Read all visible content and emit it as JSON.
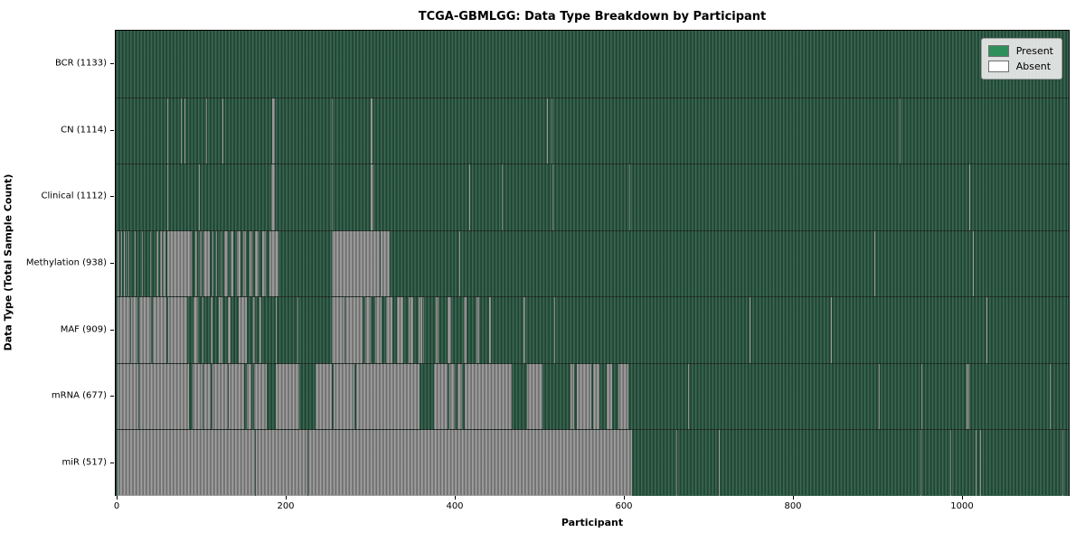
{
  "chart_data": {
    "type": "heatmap",
    "title": "TCGA-GBMLGG: Data Type Breakdown by Participant",
    "xlabel": "Participant",
    "ylabel": "Data Type (Total Sample Count)",
    "x_ticks": [
      0,
      200,
      400,
      600,
      800,
      1000
    ],
    "x_max": 1128,
    "grid": false,
    "legend_position": "upper right",
    "legend": [
      {
        "label": "Present",
        "color": "#2f8f5b"
      },
      {
        "label": "Absent",
        "color": "#ffffff"
      }
    ],
    "colors": {
      "present_fill": "#2f6049",
      "absent_fill": "#9d9d9d",
      "row_separator": "#24312a"
    },
    "rows": [
      {
        "label": "BCR (1133)",
        "data_type": "BCR",
        "total_sample_count": 1133,
        "absent": []
      },
      {
        "label": "CN (1114)",
        "data_type": "CN",
        "total_sample_count": 1114,
        "absent": [
          [
            59,
            60
          ],
          [
            75,
            76
          ],
          [
            79,
            80
          ],
          [
            105,
            106
          ],
          [
            124,
            125
          ],
          [
            183,
            186
          ],
          [
            254,
            255
          ],
          [
            299,
            302
          ],
          [
            508,
            509
          ],
          [
            513,
            514
          ],
          [
            925,
            926
          ]
        ]
      },
      {
        "label": "Clinical (1112)",
        "data_type": "Clinical",
        "total_sample_count": 1112,
        "absent": [
          [
            59,
            60
          ],
          [
            96,
            97
          ],
          [
            182,
            186
          ],
          [
            254,
            255
          ],
          [
            299,
            303
          ],
          [
            416,
            417
          ],
          [
            455,
            456
          ],
          [
            514,
            515
          ],
          [
            605,
            606
          ],
          [
            1007,
            1008
          ]
        ]
      },
      {
        "label": "Methylation (938)",
        "data_type": "Methylation",
        "total_sample_count": 938,
        "absent": [
          [
            0,
            2
          ],
          [
            4,
            5
          ],
          [
            7,
            8
          ],
          [
            10,
            11
          ],
          [
            13,
            14
          ],
          [
            20,
            21
          ],
          [
            29,
            30
          ],
          [
            38,
            39
          ],
          [
            46,
            48
          ],
          [
            50,
            52
          ],
          [
            54,
            57
          ],
          [
            59,
            88
          ],
          [
            92,
            94
          ],
          [
            97,
            99
          ],
          [
            102,
            109
          ],
          [
            112,
            113
          ],
          [
            117,
            118
          ],
          [
            122,
            123
          ],
          [
            126,
            130
          ],
          [
            134,
            137
          ],
          [
            141,
            145
          ],
          [
            149,
            152
          ],
          [
            156,
            159
          ],
          [
            163,
            167
          ],
          [
            171,
            175
          ],
          [
            180,
            190
          ],
          [
            254,
            310
          ],
          [
            311,
            322
          ],
          [
            404,
            405
          ],
          [
            895,
            896
          ],
          [
            1012,
            1013
          ]
        ]
      },
      {
        "label": "MAF (909)",
        "data_type": "MAF",
        "total_sample_count": 909,
        "absent": [
          [
            0,
            15
          ],
          [
            16,
            24
          ],
          [
            26,
            40
          ],
          [
            42,
            58
          ],
          [
            60,
            82
          ],
          [
            90,
            95
          ],
          [
            100,
            102
          ],
          [
            110,
            112
          ],
          [
            120,
            124
          ],
          [
            131,
            134
          ],
          [
            143,
            153
          ],
          [
            160,
            163
          ],
          [
            168,
            170
          ],
          [
            187,
            188
          ],
          [
            213,
            214
          ],
          [
            254,
            268
          ],
          [
            270,
            290
          ],
          [
            293,
            300
          ],
          [
            305,
            312
          ],
          [
            318,
            325
          ],
          [
            330,
            338
          ],
          [
            344,
            350
          ],
          [
            356,
            360
          ],
          [
            362,
            363
          ],
          [
            376,
            380
          ],
          [
            390,
            395
          ],
          [
            410,
            413
          ],
          [
            425,
            428
          ],
          [
            440,
            442
          ],
          [
            480,
            482
          ],
          [
            517,
            518
          ],
          [
            748,
            749
          ],
          [
            844,
            845
          ],
          [
            1028,
            1029
          ]
        ]
      },
      {
        "label": "mRNA (677)",
        "data_type": "mRNA",
        "total_sample_count": 677,
        "absent": [
          [
            0,
            25
          ],
          [
            26,
            85
          ],
          [
            89,
            100
          ],
          [
            102,
            110
          ],
          [
            112,
            130
          ],
          [
            132,
            150
          ],
          [
            153,
            158
          ],
          [
            161,
            176
          ],
          [
            187,
            215
          ],
          [
            234,
            254
          ],
          [
            256,
            280
          ],
          [
            282,
            357
          ],
          [
            374,
            390
          ],
          [
            393,
            399
          ],
          [
            402,
            408
          ],
          [
            411,
            466
          ],
          [
            484,
            503
          ],
          [
            536,
            540
          ],
          [
            543,
            560
          ],
          [
            563,
            570
          ],
          [
            579,
            585
          ],
          [
            592,
            604
          ],
          [
            675,
            676
          ],
          [
            900,
            901
          ],
          [
            951,
            952
          ],
          [
            1004,
            1007
          ],
          [
            1103,
            1104
          ]
        ]
      },
      {
        "label": "miR (517)",
        "data_type": "miR",
        "total_sample_count": 517,
        "absent": [
          [
            0,
            163
          ],
          [
            164,
            225
          ],
          [
            226,
            609
          ],
          [
            661,
            662
          ],
          [
            711,
            712
          ],
          [
            950,
            951
          ],
          [
            985,
            986
          ],
          [
            1015,
            1016
          ],
          [
            1020,
            1021
          ],
          [
            1118,
            1119
          ]
        ]
      }
    ]
  }
}
